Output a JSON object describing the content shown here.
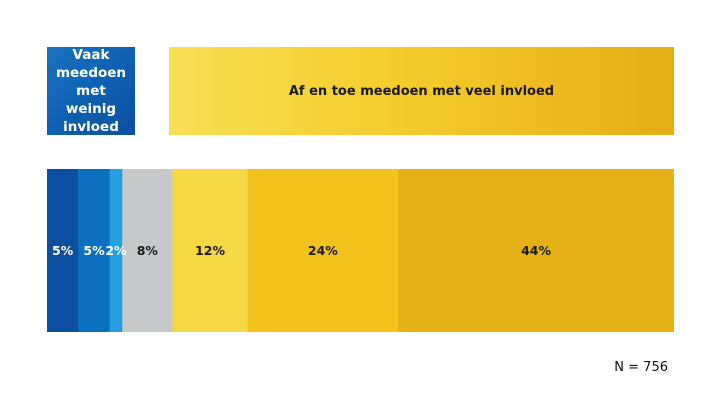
{
  "chart_data": {
    "type": "bar",
    "orientation": "horizontal-stacked",
    "series": [
      {
        "label": "5%",
        "value": 5,
        "color": "#0c4ea0",
        "text_color": "#ffffff"
      },
      {
        "label": "5%",
        "value": 5,
        "color": "#0a70bf",
        "text_color": "#ffffff"
      },
      {
        "label": "2%",
        "value": 2,
        "color": "#229fdc",
        "text_color": "#ffffff"
      },
      {
        "label": "8%",
        "value": 8,
        "color": "#c7c8ca",
        "text_color": "#1a1a1a"
      },
      {
        "label": "12%",
        "value": 12,
        "color": "#f6d744",
        "text_color": "#1a1a1a"
      },
      {
        "label": "24%",
        "value": 24,
        "color": "#f2c31c",
        "text_color": "#1a1a1a"
      },
      {
        "label": "44%",
        "value": 44,
        "color": "#e6b116",
        "text_color": "#1a1a1a"
      }
    ],
    "total": 100,
    "group_headers": [
      {
        "label": "Vaak meedoen met weinig invloed"
      },
      {
        "label": "Af en toe meedoen met veel invloed"
      }
    ],
    "note": "N = 756",
    "grid": false,
    "legend": "none"
  }
}
